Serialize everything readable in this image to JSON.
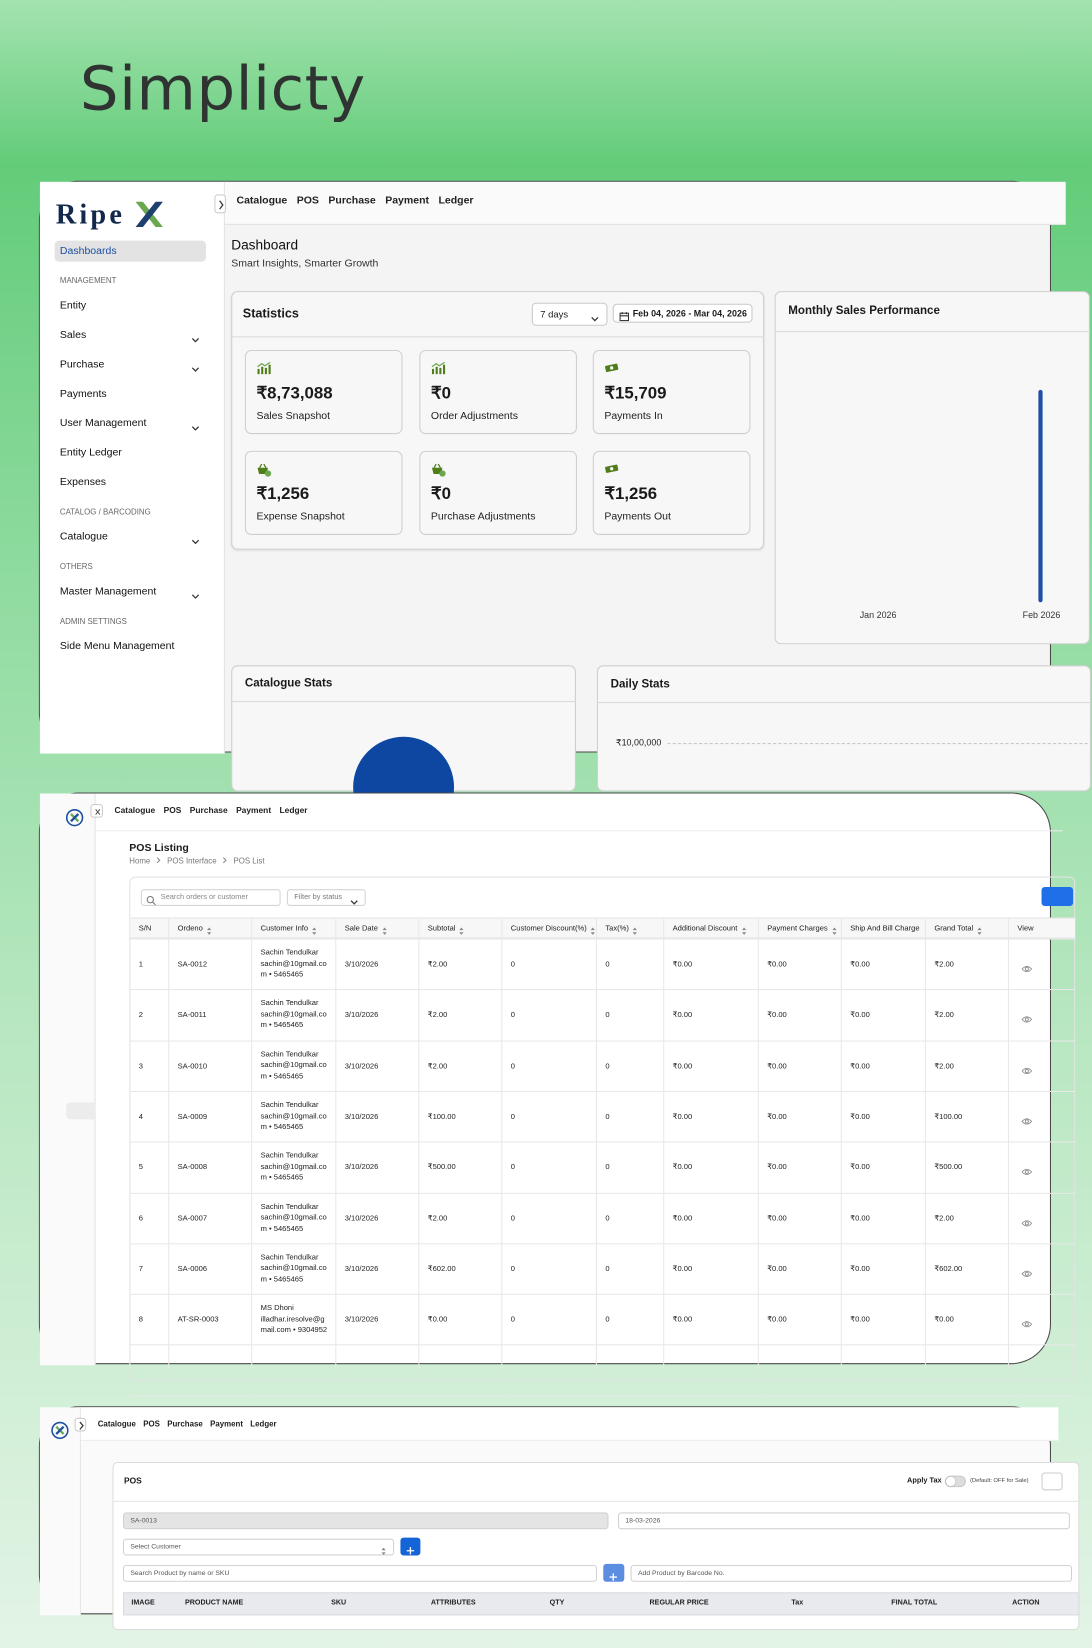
{
  "title": "Simplicty",
  "nav": [
    "Catalogue",
    "POS",
    "Purchase",
    "Payment",
    "Ledger"
  ],
  "dashboard": {
    "logo": "Ripe",
    "sidebar": {
      "active": "Dashboards",
      "sections": [
        {
          "heading": "MANAGEMENT",
          "items": [
            {
              "label": "Entity",
              "expandable": false
            },
            {
              "label": "Sales",
              "expandable": true
            },
            {
              "label": "Purchase",
              "expandable": true
            },
            {
              "label": "Payments",
              "expandable": false
            },
            {
              "label": "User Management",
              "expandable": true
            },
            {
              "label": "Entity Ledger",
              "expandable": false
            },
            {
              "label": "Expenses",
              "expandable": false
            }
          ]
        },
        {
          "heading": "CATALOG / BARCODING",
          "items": [
            {
              "label": "Catalogue",
              "expandable": true
            }
          ]
        },
        {
          "heading": "OTHERS",
          "items": [
            {
              "label": "Master Management",
              "expandable": true
            }
          ]
        },
        {
          "heading": "ADMIN SETTINGS",
          "items": [
            {
              "label": "Side Menu Management",
              "expandable": false
            }
          ]
        }
      ]
    },
    "title": "Dashboard",
    "subtitle": "Smart Insights, Smarter Growth",
    "statistics": {
      "title": "Statistics",
      "period": "7 days",
      "date_range": "Feb 04, 2026 - Mar 04, 2026",
      "cards": [
        {
          "value": "₹8,73,088",
          "label": "Sales Snapshot",
          "icon": "chart"
        },
        {
          "value": "₹0",
          "label": "Order Adjustments",
          "icon": "chart"
        },
        {
          "value": "₹15,709",
          "label": "Payments In",
          "icon": "cash"
        },
        {
          "value": "₹1,256",
          "label": "Expense Snapshot",
          "icon": "basket"
        },
        {
          "value": "₹0",
          "label": "Purchase Adjustments",
          "icon": "basket"
        },
        {
          "value": "₹1,256",
          "label": "Payments Out",
          "icon": "cash"
        }
      ]
    },
    "monthly_sales": {
      "title": "Monthly Sales Performance",
      "x": [
        "Jan 2026",
        "Feb 2026"
      ]
    },
    "catalogue_stats": {
      "title": "Catalogue Stats"
    },
    "daily_stats": {
      "title": "Daily Stats",
      "yticks": [
        "₹10,00,000"
      ]
    }
  },
  "pos_listing": {
    "title": "POS Listing",
    "breadcrumb": [
      "Home",
      "POS Interface",
      "POS List"
    ],
    "search": "Search orders or customer",
    "filter": "Filter by status",
    "columns": [
      {
        "label": "S/N",
        "sortable": false
      },
      {
        "label": "Ordeno",
        "sortable": true
      },
      {
        "label": "Customer Info",
        "sortable": true
      },
      {
        "label": "Sale Date",
        "sortable": true
      },
      {
        "label": "Subtotal",
        "sortable": true
      },
      {
        "label": "Customer Discount(%)",
        "sortable": true
      },
      {
        "label": "Tax(%)",
        "sortable": true
      },
      {
        "label": "Additional Discount",
        "sortable": true
      },
      {
        "label": "Payment Charges",
        "sortable": true
      },
      {
        "label": "Ship And Bill Charge",
        "sortable": false
      },
      {
        "label": "Grand Total",
        "sortable": true
      },
      {
        "label": "View",
        "sortable": false
      }
    ],
    "rows": [
      [
        "1",
        "SA-0012",
        [
          "Sachin Tendulkar",
          "sachin@10gmail.com • 5465465"
        ],
        "3/10/2026",
        "₹2.00",
        "0",
        "0",
        "₹0.00",
        "₹0.00",
        "₹0.00",
        "₹2.00"
      ],
      [
        "2",
        "SA-0011",
        [
          "Sachin Tendulkar",
          "sachin@10gmail.com • 5465465"
        ],
        "3/10/2026",
        "₹2.00",
        "0",
        "0",
        "₹0.00",
        "₹0.00",
        "₹0.00",
        "₹2.00"
      ],
      [
        "3",
        "SA-0010",
        [
          "Sachin Tendulkar",
          "sachin@10gmail.com • 5465465"
        ],
        "3/10/2026",
        "₹2.00",
        "0",
        "0",
        "₹0.00",
        "₹0.00",
        "₹0.00",
        "₹2.00"
      ],
      [
        "4",
        "SA-0009",
        [
          "Sachin Tendulkar",
          "sachin@10gmail.com • 5465465"
        ],
        "3/10/2026",
        "₹100.00",
        "0",
        "0",
        "₹0.00",
        "₹0.00",
        "₹0.00",
        "₹100.00"
      ],
      [
        "5",
        "SA-0008",
        [
          "Sachin Tendulkar",
          "sachin@10gmail.com • 5465465"
        ],
        "3/10/2026",
        "₹500.00",
        "0",
        "0",
        "₹0.00",
        "₹0.00",
        "₹0.00",
        "₹500.00"
      ],
      [
        "6",
        "SA-0007",
        [
          "Sachin Tendulkar",
          "sachin@10gmail.com • 5465465"
        ],
        "3/10/2026",
        "₹2.00",
        "0",
        "0",
        "₹0.00",
        "₹0.00",
        "₹0.00",
        "₹2.00"
      ],
      [
        "7",
        "SA-0006",
        [
          "Sachin Tendulkar",
          "sachin@10gmail.com • 5465465"
        ],
        "3/10/2026",
        "₹602.00",
        "0",
        "0",
        "₹0.00",
        "₹0.00",
        "₹0.00",
        "₹602.00"
      ],
      [
        "8",
        "AT-SR-0003",
        [
          "MS Dhoni",
          "illadhar.iresolve@gmail.com • 9304952"
        ],
        "3/10/2026",
        "₹0.00",
        "0",
        "0",
        "₹0.00",
        "₹0.00",
        "₹0.00",
        "₹0.00"
      ]
    ]
  },
  "pos": {
    "title": "POS",
    "apply_tax": "Apply Tax",
    "tax_note": "(Default: OFF for Sale)",
    "order_no": "SA-0013",
    "date": "18-03-2026",
    "customer": "Select Customer",
    "product_search": "Search Product by name or SKU",
    "barcode": "Add Product by Barcode No.",
    "columns": [
      "IMAGE",
      "PRODUCT NAME",
      "SKU",
      "ATTRIBUTES",
      "QTY",
      "REGULAR PRICE",
      "Tax",
      "FINAL TOTAL",
      "ACTION"
    ]
  }
}
